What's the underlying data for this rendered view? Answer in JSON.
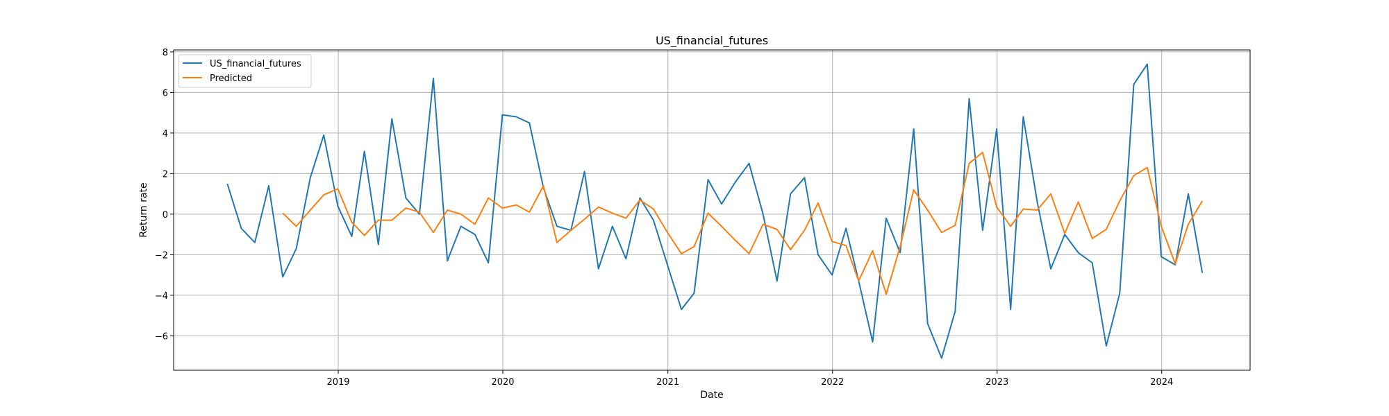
{
  "chart_data": {
    "type": "line",
    "title": "US_financial_futures",
    "xlabel": "Date",
    "ylabel": "Return rate",
    "xlim": [
      "2018-01-01",
      "2024-07-15"
    ],
    "ylim": [
      -7.7,
      8.1
    ],
    "x_ticks": [
      "2019",
      "2020",
      "2021",
      "2022",
      "2023",
      "2024"
    ],
    "y_ticks": [
      -6,
      -4,
      -2,
      0,
      2,
      4,
      6,
      8
    ],
    "y_tick_labels": [
      "−6",
      "−4",
      "−2",
      "0",
      "2",
      "4",
      "6",
      "8"
    ],
    "grid": true,
    "legend_position": "top-left",
    "series": [
      {
        "name": "US_financial_futures",
        "color": "#1f77b4",
        "dates": [
          "2018-04-30",
          "2018-05-31",
          "2018-06-30",
          "2018-07-31",
          "2018-08-31",
          "2018-09-30",
          "2018-10-31",
          "2018-11-30",
          "2018-12-31",
          "2019-01-31",
          "2019-02-28",
          "2019-03-31",
          "2019-04-30",
          "2019-05-31",
          "2019-06-30",
          "2019-07-31",
          "2019-08-31",
          "2019-09-30",
          "2019-10-31",
          "2019-11-30",
          "2019-12-31",
          "2020-01-31",
          "2020-02-29",
          "2020-03-31",
          "2020-04-30",
          "2020-05-31",
          "2020-06-30",
          "2020-07-31",
          "2020-08-31",
          "2020-09-30",
          "2020-10-31",
          "2020-11-30",
          "2020-12-31",
          "2021-01-31",
          "2021-02-28",
          "2021-03-31",
          "2021-04-30",
          "2021-05-31",
          "2021-06-30",
          "2021-07-31",
          "2021-08-31",
          "2021-09-30",
          "2021-10-31",
          "2021-11-30",
          "2021-12-31",
          "2022-01-31",
          "2022-02-28",
          "2022-03-31",
          "2022-04-30",
          "2022-05-31",
          "2022-06-30",
          "2022-07-31",
          "2022-08-31",
          "2022-09-30",
          "2022-10-31",
          "2022-11-30",
          "2022-12-31",
          "2023-01-31",
          "2023-02-28",
          "2023-03-31",
          "2023-04-30",
          "2023-05-31",
          "2023-06-30",
          "2023-07-31",
          "2023-08-31",
          "2023-09-30",
          "2023-10-31",
          "2023-11-30",
          "2023-12-31",
          "2024-01-31",
          "2024-02-29",
          "2024-03-31"
        ],
        "values": [
          1.5,
          -0.7,
          -1.4,
          1.4,
          -3.1,
          -1.7,
          1.8,
          3.9,
          0.4,
          -1.1,
          3.1,
          -1.5,
          4.7,
          0.8,
          0.0,
          6.7,
          -2.3,
          -0.6,
          -1.0,
          -2.4,
          4.9,
          4.8,
          4.5,
          1.3,
          -0.6,
          -0.8,
          2.1,
          -2.7,
          -0.6,
          -2.2,
          0.8,
          -0.3,
          -2.5,
          -4.7,
          -3.9,
          1.7,
          0.5,
          1.6,
          2.5,
          0.0,
          -3.3,
          1.0,
          1.8,
          -2.0,
          -3.0,
          -0.7,
          -3.3,
          -6.3,
          -0.2,
          -1.9,
          4.2,
          -5.4,
          -7.1,
          -4.8,
          5.7,
          -0.8,
          4.2,
          -4.7,
          4.8,
          0.6,
          -2.7,
          -1.0,
          -1.9,
          -2.4,
          -6.5,
          -3.9,
          6.4,
          7.4,
          -2.1,
          -2.5,
          1.0,
          -2.9
        ]
      },
      {
        "name": "Predicted",
        "color": "#ff7f0e",
        "dates": [
          "2018-08-31",
          "2018-09-30",
          "2018-10-31",
          "2018-11-30",
          "2018-12-31",
          "2019-01-31",
          "2019-02-28",
          "2019-03-31",
          "2019-04-30",
          "2019-05-31",
          "2019-06-30",
          "2019-07-31",
          "2019-08-31",
          "2019-09-30",
          "2019-10-31",
          "2019-11-30",
          "2019-12-31",
          "2020-01-31",
          "2020-02-29",
          "2020-03-31",
          "2020-04-30",
          "2020-05-31",
          "2020-06-30",
          "2020-07-31",
          "2020-08-31",
          "2020-09-30",
          "2020-10-31",
          "2020-11-30",
          "2020-12-31",
          "2021-01-31",
          "2021-02-28",
          "2021-03-31",
          "2021-04-30",
          "2021-05-31",
          "2021-06-30",
          "2021-07-31",
          "2021-08-31",
          "2021-09-30",
          "2021-10-31",
          "2021-11-30",
          "2021-12-31",
          "2022-01-31",
          "2022-02-28",
          "2022-03-31",
          "2022-04-30",
          "2022-05-31",
          "2022-06-30",
          "2022-07-31",
          "2022-08-31",
          "2022-09-30",
          "2022-10-31",
          "2022-11-30",
          "2022-12-31",
          "2023-01-31",
          "2023-02-28",
          "2023-03-31",
          "2023-04-30",
          "2023-05-31",
          "2023-06-30",
          "2023-07-31",
          "2023-08-31",
          "2023-09-30",
          "2023-10-31",
          "2023-11-30",
          "2023-12-31",
          "2024-01-31",
          "2024-02-29",
          "2024-03-31"
        ],
        "values": [
          0.05,
          -0.6,
          0.2,
          0.95,
          1.25,
          -0.4,
          -1.05,
          -0.3,
          -0.3,
          0.3,
          0.1,
          -0.9,
          0.2,
          0.0,
          -0.5,
          0.8,
          0.3,
          0.45,
          0.1,
          1.4,
          -1.4,
          -0.8,
          -0.25,
          0.35,
          0.05,
          -0.2,
          0.7,
          0.25,
          -0.9,
          -1.95,
          -1.6,
          0.05,
          -0.6,
          -1.3,
          -1.95,
          -0.5,
          -0.75,
          -1.75,
          -0.8,
          0.55,
          -1.35,
          -1.55,
          -3.3,
          -1.8,
          -3.95,
          -1.6,
          1.2,
          0.2,
          -0.9,
          -0.55,
          2.5,
          3.05,
          0.35,
          -0.6,
          0.25,
          0.2,
          1.0,
          -0.95,
          0.6,
          -1.2,
          -0.75,
          0.65,
          1.9,
          2.3,
          -0.6,
          -2.45,
          -0.5,
          0.65
        ]
      }
    ]
  }
}
